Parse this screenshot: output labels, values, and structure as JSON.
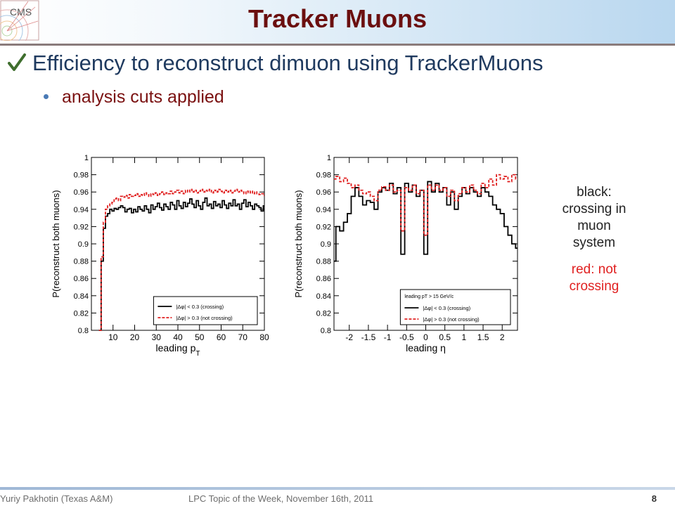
{
  "slide": {
    "title": "Tracker Muons",
    "bullet1": "Efficiency to reconstruct dimuon using TrackerMuons",
    "bullet2": "analysis cuts applied",
    "note_black": [
      "black:",
      "crossing in",
      "muon",
      "system"
    ],
    "note_red": [
      "red:  not",
      "crossing"
    ],
    "footer_left": "Yuriy Pakhotin (Texas A&M)",
    "footer_middle": "LPC Topic of the Week, November 16th, 2011",
    "page_number": "8"
  },
  "colors": {
    "title": "#6b0f0f",
    "crossing": "#000000",
    "not_crossing": "#e02020"
  },
  "logo_text": "CMS",
  "chart_data": [
    {
      "type": "line",
      "xlabel": "leading p",
      "xlabel_sub": "T",
      "ylabel": "P(reconstruct both muons)",
      "xlim": [
        0,
        80
      ],
      "ylim": [
        0.8,
        1.0
      ],
      "xticks": [
        10,
        20,
        30,
        40,
        50,
        60,
        70,
        80
      ],
      "yticks": [
        0.8,
        0.82,
        0.84,
        0.86,
        0.88,
        0.9,
        0.92,
        0.94,
        0.96,
        0.98,
        1
      ],
      "legend_header": "",
      "legend_position": "bottom-right",
      "series": [
        {
          "name": "|Δφ| < 0.3 (crossing)",
          "color": "#000000",
          "dash": "",
          "x": [
            4,
            5,
            6,
            7,
            8,
            9,
            10,
            11,
            12,
            13,
            14,
            15,
            16,
            17,
            18,
            19,
            20,
            21,
            22,
            23,
            24,
            25,
            26,
            27,
            28,
            29,
            30,
            31,
            32,
            33,
            34,
            35,
            36,
            37,
            38,
            39,
            40,
            41,
            42,
            43,
            44,
            45,
            46,
            47,
            48,
            49,
            50,
            51,
            52,
            53,
            54,
            55,
            56,
            57,
            58,
            59,
            60,
            61,
            62,
            63,
            64,
            65,
            66,
            67,
            68,
            69,
            70,
            71,
            72,
            73,
            74,
            75,
            76,
            77,
            78,
            79,
            80
          ],
          "y": [
            0.8,
            0.88,
            0.918,
            0.932,
            0.935,
            0.94,
            0.938,
            0.941,
            0.94,
            0.942,
            0.944,
            0.942,
            0.937,
            0.94,
            0.941,
            0.936,
            0.94,
            0.937,
            0.943,
            0.94,
            0.938,
            0.944,
            0.94,
            0.936,
            0.945,
            0.94,
            0.943,
            0.947,
            0.942,
            0.939,
            0.946,
            0.943,
            0.94,
            0.948,
            0.945,
            0.94,
            0.95,
            0.944,
            0.941,
            0.948,
            0.943,
            0.947,
            0.952,
            0.946,
            0.942,
            0.95,
            0.944,
            0.94,
            0.948,
            0.953,
            0.944,
            0.946,
            0.941,
            0.949,
            0.944,
            0.946,
            0.942,
            0.95,
            0.945,
            0.941,
            0.947,
            0.944,
            0.951,
            0.944,
            0.946,
            0.94,
            0.947,
            0.951,
            0.943,
            0.948,
            0.944,
            0.94,
            0.946,
            0.944,
            0.942,
            0.938,
            0.944
          ]
        },
        {
          "name": "|Δφ| > 0.3 (not crossing)",
          "color": "#e02020",
          "dash": "4,2",
          "x": [
            4,
            5,
            6,
            7,
            8,
            9,
            10,
            11,
            12,
            13,
            14,
            15,
            16,
            17,
            18,
            19,
            20,
            21,
            22,
            23,
            24,
            25,
            26,
            27,
            28,
            29,
            30,
            31,
            32,
            33,
            34,
            35,
            36,
            37,
            38,
            39,
            40,
            41,
            42,
            43,
            44,
            45,
            46,
            47,
            48,
            49,
            50,
            51,
            52,
            53,
            54,
            55,
            56,
            57,
            58,
            59,
            60,
            61,
            62,
            63,
            64,
            65,
            66,
            67,
            68,
            69,
            70,
            71,
            72,
            73,
            74,
            75,
            76,
            77,
            78,
            79,
            80
          ],
          "y": [
            0.8,
            0.885,
            0.925,
            0.94,
            0.944,
            0.946,
            0.948,
            0.952,
            0.953,
            0.95,
            0.955,
            0.954,
            0.956,
            0.953,
            0.957,
            0.955,
            0.956,
            0.958,
            0.955,
            0.957,
            0.956,
            0.959,
            0.957,
            0.955,
            0.958,
            0.957,
            0.959,
            0.956,
            0.958,
            0.96,
            0.957,
            0.959,
            0.958,
            0.961,
            0.958,
            0.96,
            0.962,
            0.959,
            0.961,
            0.958,
            0.962,
            0.96,
            0.963,
            0.96,
            0.962,
            0.959,
            0.961,
            0.963,
            0.96,
            0.962,
            0.961,
            0.963,
            0.959,
            0.962,
            0.96,
            0.963,
            0.961,
            0.959,
            0.962,
            0.96,
            0.962,
            0.959,
            0.961,
            0.963,
            0.96,
            0.962,
            0.96,
            0.958,
            0.961,
            0.959,
            0.961,
            0.958,
            0.96,
            0.958,
            0.957,
            0.958,
            0.956
          ]
        }
      ]
    },
    {
      "type": "line",
      "xlabel": "leading η",
      "xlabel_sub": "",
      "ylabel": "P(reconstruct both muons)",
      "xlim": [
        -2.4,
        2.4
      ],
      "ylim": [
        0.8,
        1.0
      ],
      "xticks": [
        -2,
        -1.5,
        -1,
        -0.5,
        0,
        0.5,
        1,
        1.5,
        2
      ],
      "yticks": [
        0.8,
        0.82,
        0.84,
        0.86,
        0.88,
        0.9,
        0.92,
        0.94,
        0.96,
        0.98,
        1
      ],
      "legend_header": "leading p_T > 15 GeV/c",
      "legend_position": "bottom-right",
      "series": [
        {
          "name": "|Δφ| < 0.3 (crossing)",
          "color": "#000000",
          "dash": "",
          "x": [
            -2.4,
            -2.3,
            -2.2,
            -2.1,
            -2.0,
            -1.9,
            -1.8,
            -1.7,
            -1.6,
            -1.5,
            -1.4,
            -1.3,
            -1.2,
            -1.1,
            -1.0,
            -0.9,
            -0.8,
            -0.7,
            -0.6,
            -0.5,
            -0.4,
            -0.3,
            -0.2,
            -0.1,
            0.0,
            0.1,
            0.2,
            0.3,
            0.4,
            0.5,
            0.6,
            0.7,
            0.8,
            0.9,
            1.0,
            1.1,
            1.2,
            1.3,
            1.4,
            1.5,
            1.6,
            1.7,
            1.8,
            1.9,
            2.0,
            2.1,
            2.2,
            2.3,
            2.4
          ],
          "y": [
            0.88,
            0.92,
            0.915,
            0.925,
            0.935,
            0.955,
            0.965,
            0.955,
            0.945,
            0.95,
            0.948,
            0.94,
            0.96,
            0.965,
            0.962,
            0.97,
            0.958,
            0.965,
            0.888,
            0.97,
            0.96,
            0.968,
            0.955,
            0.962,
            0.888,
            0.972,
            0.96,
            0.97,
            0.96,
            0.965,
            0.945,
            0.96,
            0.94,
            0.955,
            0.965,
            0.958,
            0.965,
            0.96,
            0.955,
            0.965,
            0.96,
            0.955,
            0.945,
            0.94,
            0.935,
            0.92,
            0.91,
            0.9,
            0.895
          ]
        },
        {
          "name": "|Δφ| > 0.3 (not crossing)",
          "color": "#e02020",
          "dash": "4,2",
          "x": [
            -2.4,
            -2.3,
            -2.2,
            -2.1,
            -2.0,
            -1.9,
            -1.8,
            -1.7,
            -1.6,
            -1.5,
            -1.4,
            -1.3,
            -1.2,
            -1.1,
            -1.0,
            -0.9,
            -0.8,
            -0.7,
            -0.6,
            -0.5,
            -0.4,
            -0.3,
            -0.2,
            -0.1,
            0.0,
            0.1,
            0.2,
            0.3,
            0.4,
            0.5,
            0.6,
            0.7,
            0.8,
            0.9,
            1.0,
            1.1,
            1.2,
            1.3,
            1.4,
            1.5,
            1.6,
            1.7,
            1.8,
            1.9,
            2.0,
            2.1,
            2.2,
            2.3,
            2.4
          ],
          "y": [
            0.975,
            0.978,
            0.972,
            0.976,
            0.97,
            0.965,
            0.968,
            0.962,
            0.958,
            0.96,
            0.955,
            0.95,
            0.962,
            0.966,
            0.962,
            0.968,
            0.96,
            0.962,
            0.915,
            0.965,
            0.962,
            0.968,
            0.958,
            0.962,
            0.91,
            0.968,
            0.962,
            0.968,
            0.962,
            0.965,
            0.955,
            0.962,
            0.95,
            0.958,
            0.965,
            0.96,
            0.968,
            0.962,
            0.958,
            0.97,
            0.965,
            0.975,
            0.968,
            0.98,
            0.975,
            0.978,
            0.972,
            0.98,
            0.975
          ]
        }
      ]
    }
  ]
}
